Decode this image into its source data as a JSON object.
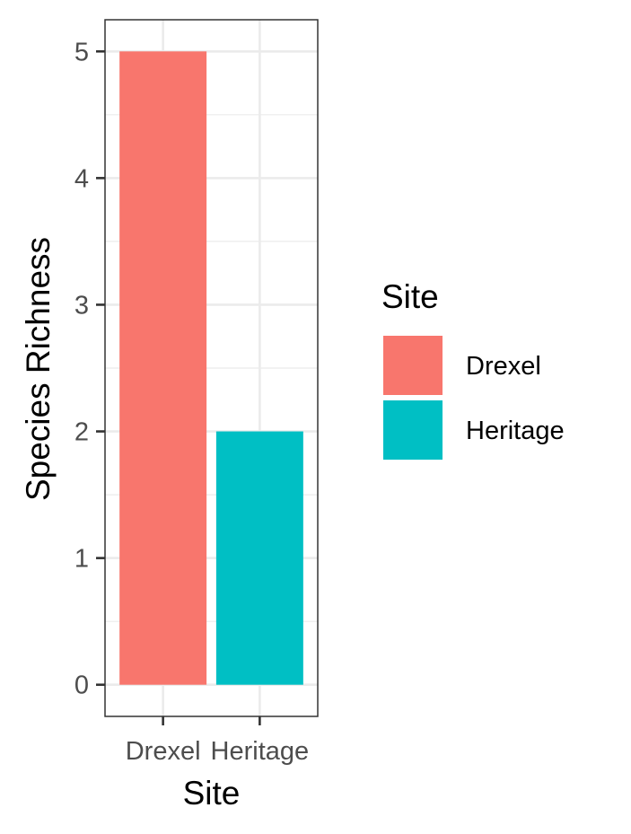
{
  "chart_data": {
    "type": "bar",
    "categories": [
      "Drexel",
      "Heritage"
    ],
    "values": [
      5,
      2
    ],
    "colors": [
      "#F8766D",
      "#00BFC4"
    ],
    "xlabel": "Site",
    "ylabel": "Species Richness",
    "ylim": [
      -0.25,
      5.25
    ],
    "yticks": [
      "0",
      "1",
      "2",
      "3",
      "4",
      "5"
    ],
    "grid": true,
    "legend": {
      "title": "Site",
      "position": "right",
      "entries": [
        "Drexel",
        "Heritage"
      ]
    }
  }
}
